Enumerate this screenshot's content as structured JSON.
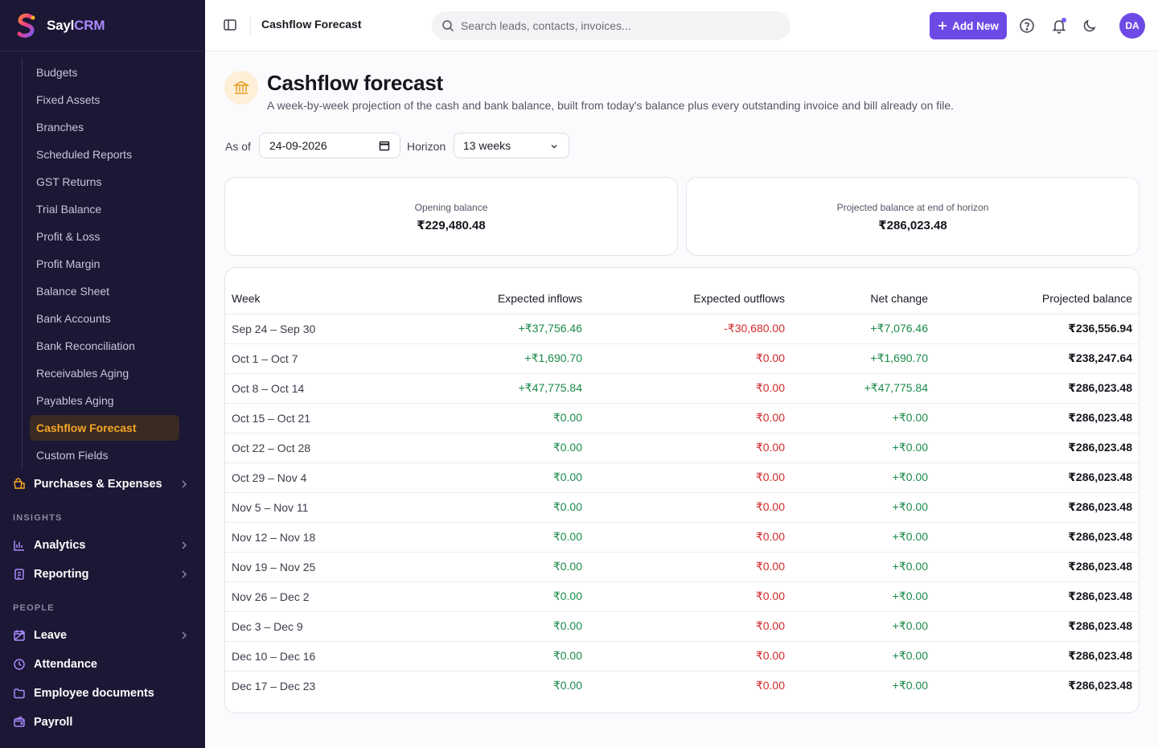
{
  "brand": {
    "name_main": "Sayl",
    "name_accent": "CRM"
  },
  "sidebar": {
    "sub_items": [
      "Budgets",
      "Fixed Assets",
      "Branches",
      "Scheduled Reports",
      "GST Returns",
      "Trial Balance",
      "Profit & Loss",
      "Profit Margin",
      "Balance Sheet",
      "Bank Accounts",
      "Bank Reconciliation",
      "Receivables Aging",
      "Payables Aging",
      "Cashflow Forecast",
      "Custom Fields"
    ],
    "active_sub_item": "Cashflow Forecast",
    "purchases": "Purchases & Expenses",
    "insights_label": "INSIGHTS",
    "analytics": "Analytics",
    "reporting": "Reporting",
    "people_label": "PEOPLE",
    "leave": "Leave",
    "attendance": "Attendance",
    "employee_documents": "Employee documents",
    "payroll": "Payroll"
  },
  "topbar": {
    "crumb": "Cashflow Forecast",
    "search_placeholder": "Search leads, contacts, invoices...",
    "add_new": "Add New",
    "avatar_initials": "DA"
  },
  "page": {
    "title": "Cashflow forecast",
    "subtitle": "A week-by-week projection of the cash and bank balance, built from today's balance plus every outstanding invoice and bill already on file."
  },
  "filters": {
    "as_of_label": "As of",
    "as_of_value": "24-09-2026",
    "horizon_label": "Horizon",
    "horizon_value": "13 weeks"
  },
  "stats": {
    "opening_label": "Opening balance",
    "opening_value": "₹229,480.48",
    "projected_label": "Projected balance at end of horizon",
    "projected_value": "₹286,023.48"
  },
  "table": {
    "headers": [
      "Week",
      "Expected inflows",
      "Expected outflows",
      "Net change",
      "Projected balance"
    ],
    "rows": [
      [
        "Sep 24 – Sep 30",
        "+₹37,756.46",
        "-₹30,680.00",
        "+₹7,076.46",
        "₹236,556.94"
      ],
      [
        "Oct 1 – Oct 7",
        "+₹1,690.70",
        "₹0.00",
        "+₹1,690.70",
        "₹238,247.64"
      ],
      [
        "Oct 8 – Oct 14",
        "+₹47,775.84",
        "₹0.00",
        "+₹47,775.84",
        "₹286,023.48"
      ],
      [
        "Oct 15 – Oct 21",
        "₹0.00",
        "₹0.00",
        "+₹0.00",
        "₹286,023.48"
      ],
      [
        "Oct 22 – Oct 28",
        "₹0.00",
        "₹0.00",
        "+₹0.00",
        "₹286,023.48"
      ],
      [
        "Oct 29 – Nov 4",
        "₹0.00",
        "₹0.00",
        "+₹0.00",
        "₹286,023.48"
      ],
      [
        "Nov 5 – Nov 11",
        "₹0.00",
        "₹0.00",
        "+₹0.00",
        "₹286,023.48"
      ],
      [
        "Nov 12 – Nov 18",
        "₹0.00",
        "₹0.00",
        "+₹0.00",
        "₹286,023.48"
      ],
      [
        "Nov 19 – Nov 25",
        "₹0.00",
        "₹0.00",
        "+₹0.00",
        "₹286,023.48"
      ],
      [
        "Nov 26 – Dec 2",
        "₹0.00",
        "₹0.00",
        "+₹0.00",
        "₹286,023.48"
      ],
      [
        "Dec 3 – Dec 9",
        "₹0.00",
        "₹0.00",
        "+₹0.00",
        "₹286,023.48"
      ],
      [
        "Dec 10 – Dec 16",
        "₹0.00",
        "₹0.00",
        "+₹0.00",
        "₹286,023.48"
      ],
      [
        "Dec 17 – Dec 23",
        "₹0.00",
        "₹0.00",
        "+₹0.00",
        "₹286,023.48"
      ]
    ]
  },
  "colors": {
    "sidebar_bg": "#1b1734",
    "accent": "#6d4ae6",
    "active_item": "#f5a623",
    "positive": "#1a8a4a",
    "negative": "#d02a2a"
  }
}
